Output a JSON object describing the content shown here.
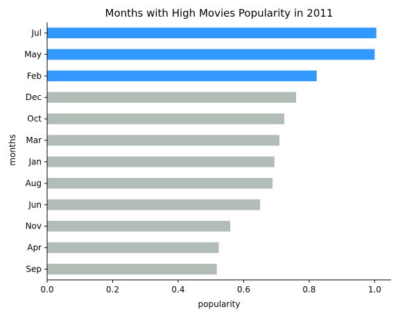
{
  "chart_data": {
    "type": "bar",
    "orientation": "horizontal",
    "title": "Months with High Movies Popularity in 2011",
    "xlabel": "popularity",
    "ylabel": "months",
    "xlim": [
      0,
      1.05
    ],
    "xticks": [
      0.0,
      0.2,
      0.4,
      0.6,
      0.8,
      1.0
    ],
    "xtick_labels": [
      "0.0",
      "0.2",
      "0.4",
      "0.6",
      "0.8",
      "1.0"
    ],
    "grid": false,
    "categories": [
      "Jul",
      "May",
      "Feb",
      "Dec",
      "Oct",
      "Mar",
      "Jan",
      "Aug",
      "Jun",
      "Nov",
      "Apr",
      "Sep"
    ],
    "values": [
      1.005,
      1.0,
      0.823,
      0.76,
      0.724,
      0.709,
      0.694,
      0.688,
      0.65,
      0.559,
      0.524,
      0.518
    ],
    "highlighted": [
      true,
      true,
      true,
      false,
      false,
      false,
      false,
      false,
      false,
      false,
      false,
      false
    ],
    "colors": {
      "highlight": "#3399ff",
      "default": "#b3bdb7"
    }
  }
}
